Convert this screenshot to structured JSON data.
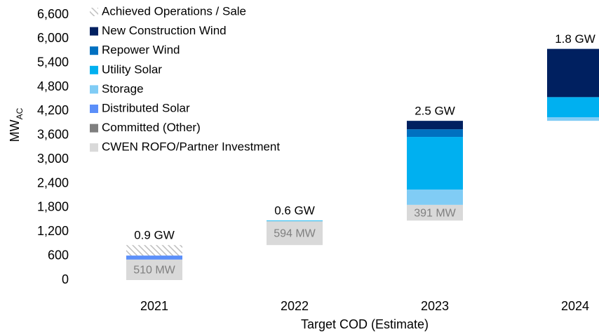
{
  "chart_data": {
    "type": "waterfall_stacked_bar",
    "y_label": "MW",
    "y_label_sub": "AC",
    "x_label": "Target COD (Estimate)",
    "categories": [
      "2021",
      "2022",
      "2023",
      "2024"
    ],
    "series": [
      {
        "name": "CWEN ROFO/Partner Investment",
        "color": "#d9d9d9",
        "values": [
          510,
          594,
          391,
          null
        ],
        "value_labels": [
          "510 MW",
          "594 MW",
          "391 MW",
          null
        ]
      },
      {
        "name": "Committed (Other)",
        "color": "#7f7f7f",
        "values": [
          null,
          null,
          null,
          null
        ]
      },
      {
        "name": "Distributed Solar",
        "color": "#5b8ff9",
        "values": [
          100,
          null,
          null,
          null
        ]
      },
      {
        "name": "Storage",
        "color": "#80ccf5",
        "values": [
          null,
          null,
          380,
          90
        ]
      },
      {
        "name": "Utility Solar",
        "color": "#00b0f0",
        "values": [
          null,
          16,
          1310,
          500
        ]
      },
      {
        "name": "Repower Wind",
        "color": "#0070c0",
        "values": [
          null,
          null,
          190,
          null
        ]
      },
      {
        "name": "New Construction Wind",
        "color": "#002060",
        "values": [
          null,
          null,
          210,
          1200
        ]
      },
      {
        "name": "Achieved Operations / Sale",
        "color": "#bfbfbf",
        "pattern": "hatch",
        "values": [
          260,
          null,
          null,
          null
        ]
      }
    ],
    "annotations": [
      "0.9 GW",
      "0.6 GW",
      "2.5 GW",
      "1.8 GW"
    ],
    "ylim": [
      0,
      6600
    ],
    "yticks": [
      0,
      600,
      {
        "value": 1200,
        "label": "1,200"
      },
      {
        "value": 1800,
        "label": "1,800"
      },
      {
        "value": 2400,
        "label": "2,400"
      },
      {
        "value": 3000,
        "label": "3,000"
      },
      {
        "value": 3600,
        "label": "3,600"
      },
      {
        "value": 4200,
        "label": "4,200"
      },
      {
        "value": 4800,
        "label": "4,800"
      },
      {
        "value": 5400,
        "label": "5,400"
      },
      {
        "value": 6000,
        "label": "6,000"
      },
      {
        "value": 6600,
        "label": "6,600"
      }
    ],
    "grid": false
  }
}
